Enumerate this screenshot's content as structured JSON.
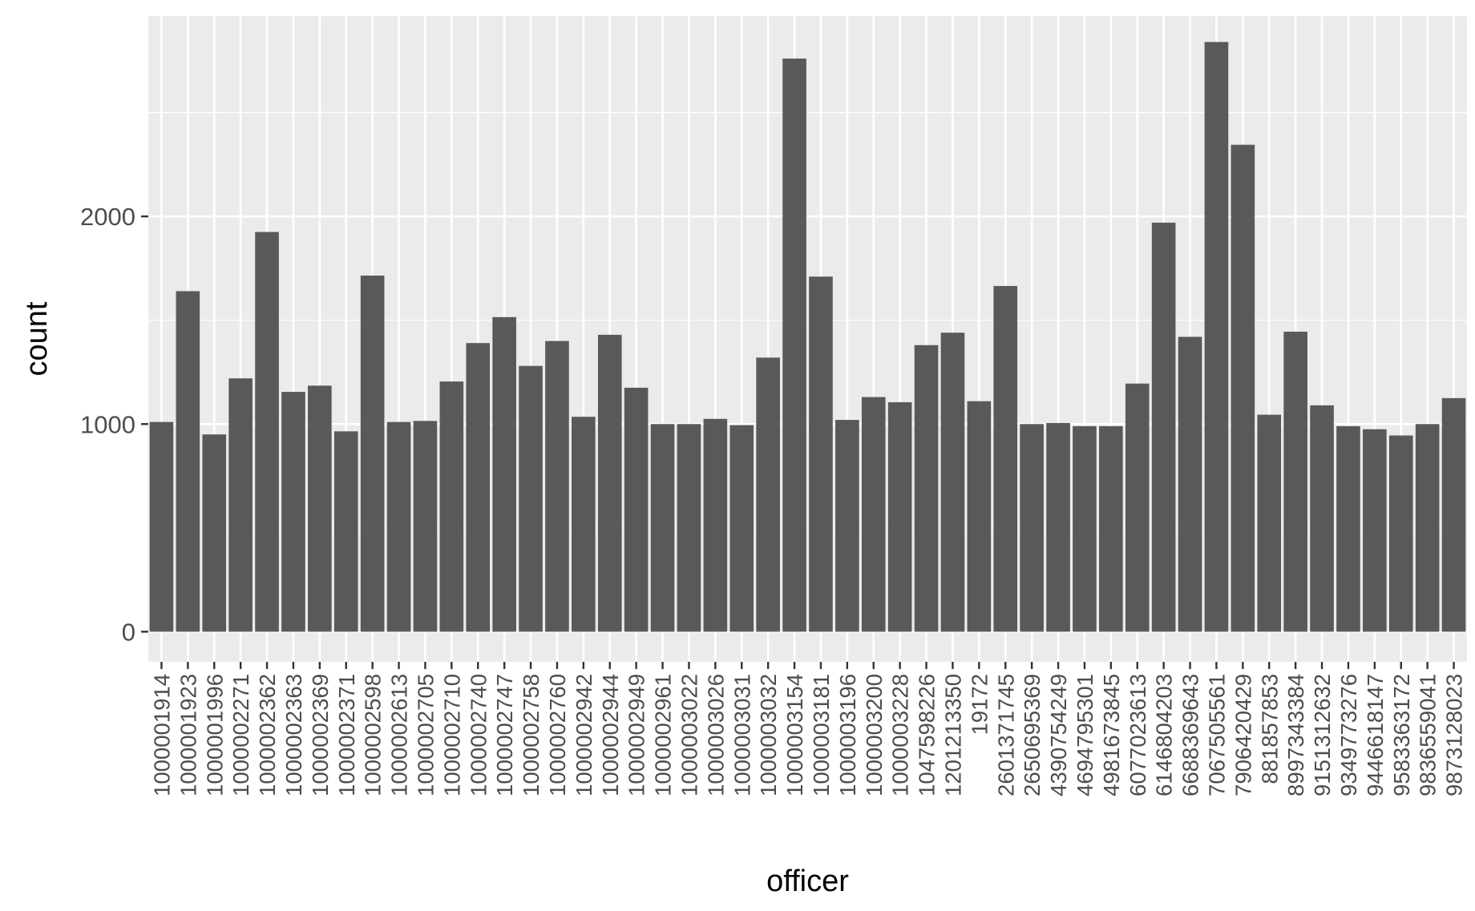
{
  "chart_data": {
    "type": "bar",
    "xlabel": "officer",
    "ylabel": "count",
    "ylim": [
      -145,
      2965
    ],
    "yticks": [
      0,
      1000,
      2000
    ],
    "grid": true,
    "legend": "none",
    "categories": [
      "1000001914",
      "1000001923",
      "1000001996",
      "1000002271",
      "1000002362",
      "1000002363",
      "1000002369",
      "1000002371",
      "1000002598",
      "1000002613",
      "1000002705",
      "1000002710",
      "1000002740",
      "1000002747",
      "1000002758",
      "1000002760",
      "1000002942",
      "1000002944",
      "1000002949",
      "1000002961",
      "1000003022",
      "1000003026",
      "1000003031",
      "1000003032",
      "1000003154",
      "1000003181",
      "1000003196",
      "1000003200",
      "1000003228",
      "1047598226",
      "1201213350",
      "19172",
      "2601371745",
      "2650695369",
      "4390754249",
      "4694795301",
      "4981673845",
      "6077023613",
      "6146804203",
      "6688369643",
      "7067505561",
      "7906420429",
      "881857853",
      "8997343384",
      "9151312632",
      "9349773276",
      "9446618147",
      "9583363172",
      "9836559041",
      "9873128023"
    ],
    "tick_labels": [
      "1000001914",
      "1000001923",
      "1000001996",
      "1000002271",
      "1000002362",
      "1000002363",
      "1000002369",
      "1000002371",
      "1000002598",
      "1000002613",
      "1000002705",
      "1000002710",
      "1000002740",
      "1000002747",
      "1000002758",
      "1000002760",
      "1000002942",
      "1000002944",
      "1000002949",
      "1000002961",
      "1000003022",
      "1000003026",
      "1000003031",
      "1000003032",
      "1000003154",
      "1000003181",
      "1000003196",
      "1000003200",
      "1000003228",
      "1047598226",
      "1201213350",
      "19172",
      "2601371745",
      "2650695369",
      "4390754249",
      "4694795301",
      "4981673845",
      "6077023613",
      "6146804203",
      "6688369643",
      "7067505561",
      "7906420429",
      "881857853",
      "8997343384",
      "9151312632",
      "9349773276",
      "9446618147",
      "9583363172",
      "9836559041",
      "9873128023"
    ],
    "values": [
      1010,
      1640,
      950,
      1220,
      1925,
      1155,
      1185,
      965,
      1715,
      1010,
      1015,
      1205,
      1390,
      1515,
      1280,
      1400,
      1035,
      1430,
      1175,
      1000,
      1000,
      1025,
      995,
      1320,
      2760,
      1710,
      1020,
      1130,
      1105,
      1380,
      1440,
      1110,
      1665,
      1000,
      1005,
      990,
      990,
      1195,
      1970,
      1420,
      2840,
      2345,
      1045,
      1445,
      1090,
      990,
      975,
      945,
      1000,
      1125
    ],
    "colors": {
      "panel_bg": "#ebebeb",
      "grid_major": "#ffffff",
      "bar_fill": "#595959",
      "tick_color": "#333333",
      "tick_text": "#4d4d4d"
    }
  }
}
